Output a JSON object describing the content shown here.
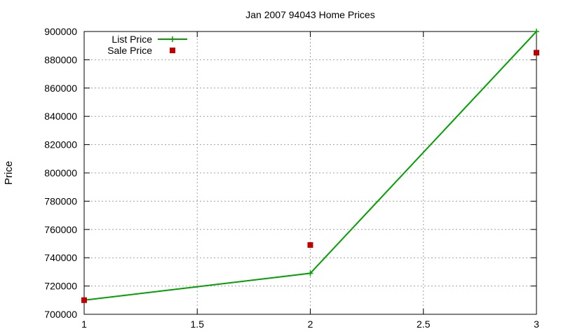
{
  "chart_data": {
    "type": "line",
    "title": "Jan 2007 94043 Home Prices",
    "xlabel": "",
    "ylabel": "Price",
    "xlim": [
      1,
      3
    ],
    "ylim": [
      700000,
      900000
    ],
    "x_ticks": [
      1,
      1.5,
      2,
      2.5,
      3
    ],
    "x_tick_labels": [
      "1",
      "1.5",
      "2",
      "2.5",
      "3"
    ],
    "y_ticks": [
      700000,
      720000,
      740000,
      760000,
      780000,
      800000,
      820000,
      840000,
      860000,
      880000,
      900000
    ],
    "y_tick_labels": [
      "700000",
      "720000",
      "740000",
      "760000",
      "780000",
      "800000",
      "820000",
      "840000",
      "860000",
      "880000",
      "900000"
    ],
    "grid": true,
    "legend_position": "top-left",
    "series": [
      {
        "name": "List Price",
        "style": "linespoints",
        "marker": "plus",
        "color": "#00a000",
        "x": [
          1,
          2,
          3
        ],
        "y": [
          710000,
          729000,
          900000
        ]
      },
      {
        "name": "Sale Price",
        "style": "points",
        "marker": "square",
        "color": "#c00000",
        "x": [
          1,
          2,
          3
        ],
        "y": [
          710000,
          749000,
          885000
        ]
      }
    ]
  }
}
